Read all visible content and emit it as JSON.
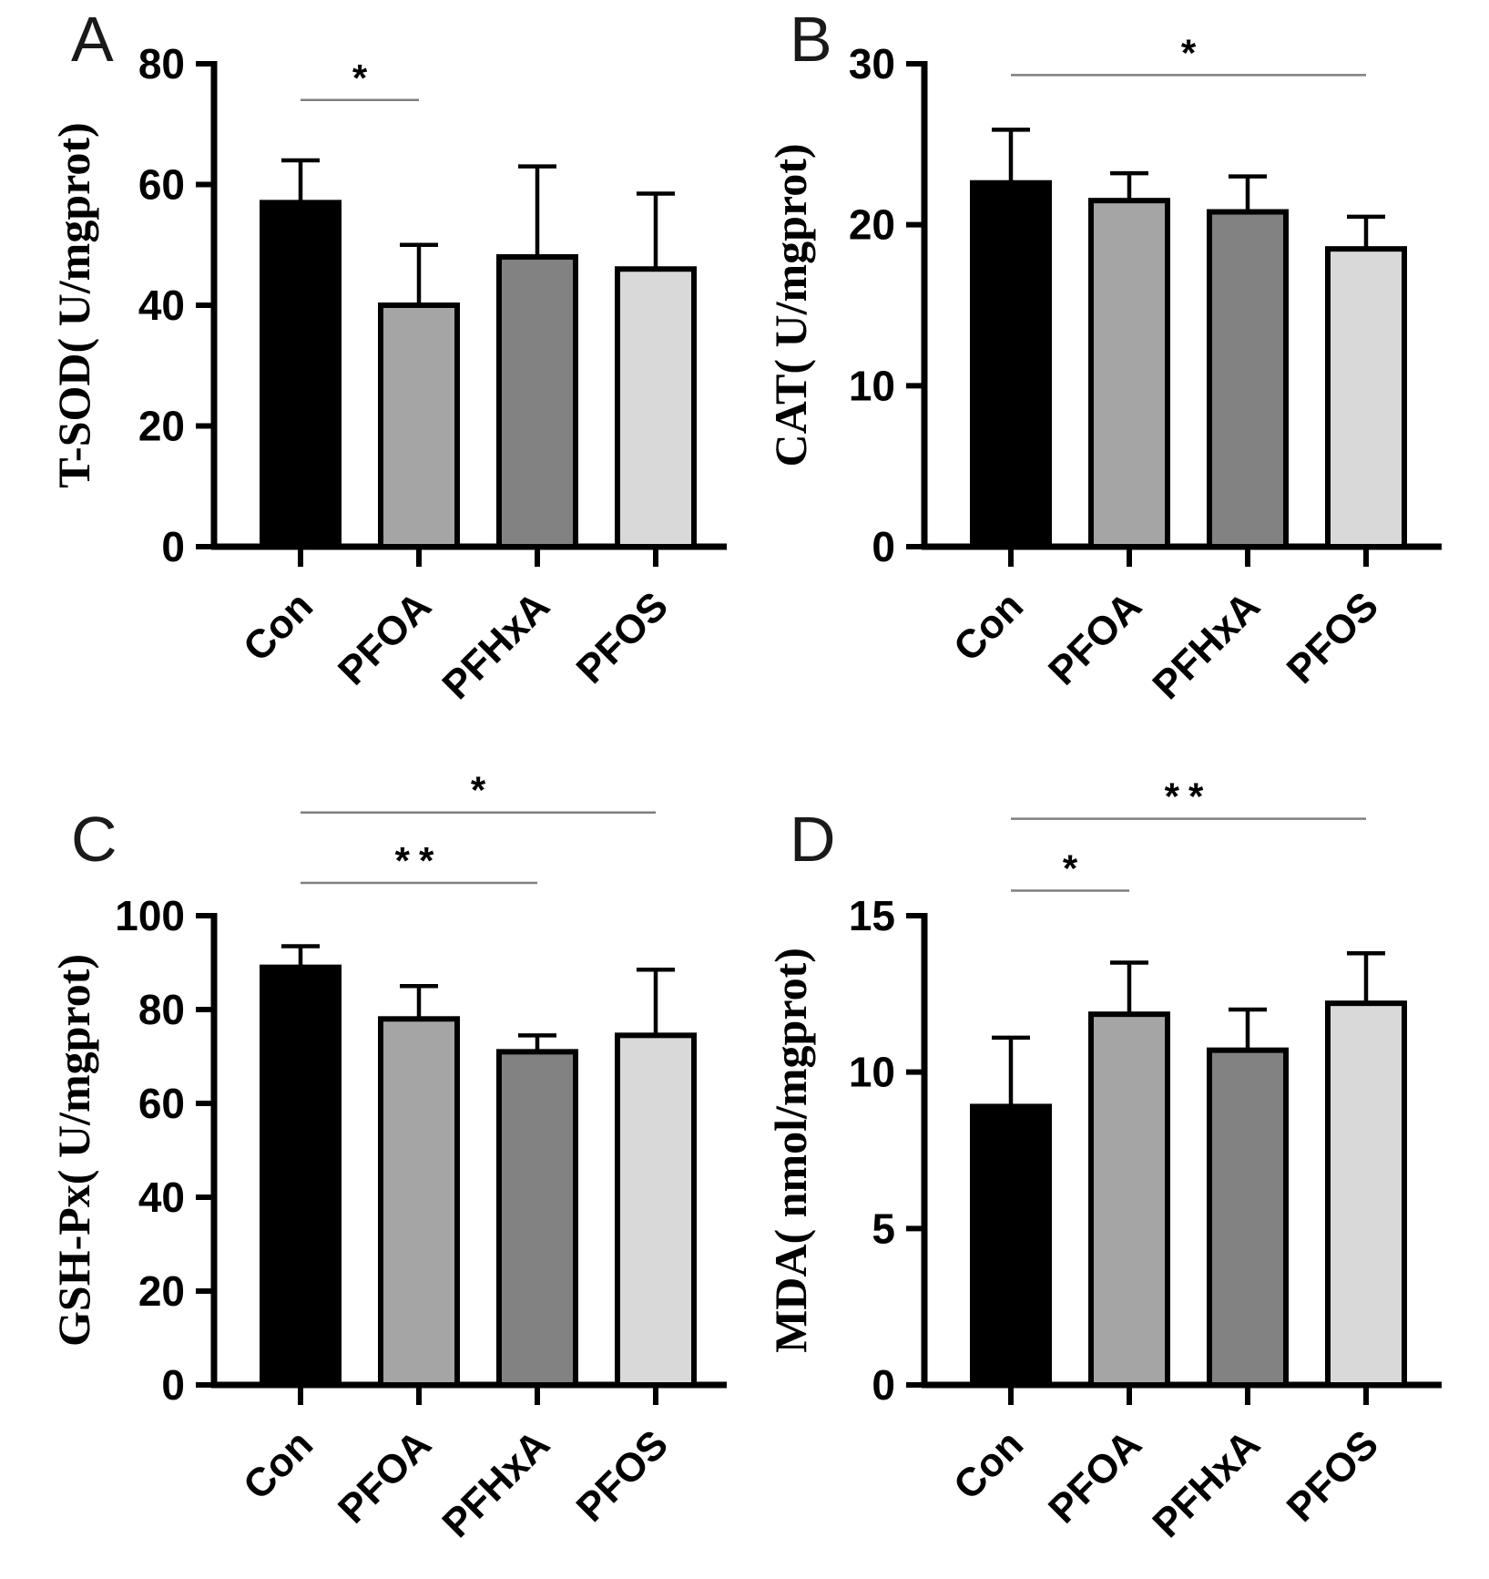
{
  "figure": {
    "background": "#ffffff",
    "groups": [
      "Con",
      "PFOA",
      "PFHxA",
      "PFOS"
    ],
    "bar_colors": {
      "Con": "#000000",
      "PFOA": "#a5a5a5",
      "PFHxA": "#828282",
      "PFOS": "#d9d9d9"
    },
    "bar_edge_color": "#000000",
    "error_bar_color": "#000000",
    "sig_line_color": "#7f7f7f",
    "sig_star_color": "#000000"
  },
  "chart_data": [
    {
      "type": "bar",
      "panel_label": "A",
      "title": "",
      "xlabel": "",
      "ylabel": "T-SOD( U/mgprot)",
      "categories": [
        "Con",
        "PFOA",
        "PFHxA",
        "PFOS"
      ],
      "values": [
        57,
        40,
        48,
        46
      ],
      "errors_plus": [
        7,
        10,
        15,
        12.5
      ],
      "ylim": [
        0,
        80
      ],
      "yticks": [
        0,
        20,
        40,
        60,
        80
      ],
      "grid": false,
      "legend": "none",
      "significance": [
        {
          "from": "Con",
          "to": "PFOA",
          "label": "*",
          "y_value": 74
        }
      ]
    },
    {
      "type": "bar",
      "panel_label": "B",
      "title": "",
      "xlabel": "",
      "ylabel": "CAT( U/mgprot)",
      "categories": [
        "Con",
        "PFOA",
        "PFHxA",
        "PFOS"
      ],
      "values": [
        22.6,
        21.5,
        20.8,
        18.5
      ],
      "errors_plus": [
        3.3,
        1.7,
        2.2,
        2.0
      ],
      "ylim": [
        0,
        30
      ],
      "yticks": [
        0,
        10,
        20,
        30
      ],
      "grid": false,
      "legend": "none",
      "significance": [
        {
          "from": "Con",
          "to": "PFOS",
          "label": "*",
          "y_value": 29.3
        }
      ]
    },
    {
      "type": "bar",
      "panel_label": "C",
      "title": "",
      "xlabel": "",
      "ylabel": "GSH-Px( U/mgprot)",
      "categories": [
        "Con",
        "PFOA",
        "PFHxA",
        "PFOS"
      ],
      "values": [
        89,
        78,
        71,
        74.5
      ],
      "errors_plus": [
        4.5,
        7,
        3.5,
        14
      ],
      "ylim": [
        0,
        100
      ],
      "yticks": [
        0,
        20,
        40,
        60,
        80,
        100
      ],
      "grid": false,
      "legend": "none",
      "significance": [
        {
          "from": "Con",
          "to": "PFOS",
          "label": "*",
          "y_value": 122
        },
        {
          "from": "Con",
          "to": "PFHxA",
          "label": "**",
          "y_value": 107
        }
      ]
    },
    {
      "type": "bar",
      "panel_label": "D",
      "title": "",
      "xlabel": "",
      "ylabel": "MDA( nmol/mgprot)",
      "categories": [
        "Con",
        "PFOA",
        "PFHxA",
        "PFOS"
      ],
      "values": [
        8.9,
        11.85,
        10.7,
        12.2
      ],
      "errors_plus": [
        2.2,
        1.65,
        1.3,
        1.6
      ],
      "ylim": [
        0,
        15
      ],
      "yticks": [
        0,
        5,
        10,
        15
      ],
      "grid": false,
      "legend": "none",
      "significance": [
        {
          "from": "Con",
          "to": "PFOS",
          "label": "**",
          "y_value": 18.1
        },
        {
          "from": "Con",
          "to": "PFOA",
          "label": "*",
          "y_value": 15.8
        }
      ]
    }
  ]
}
